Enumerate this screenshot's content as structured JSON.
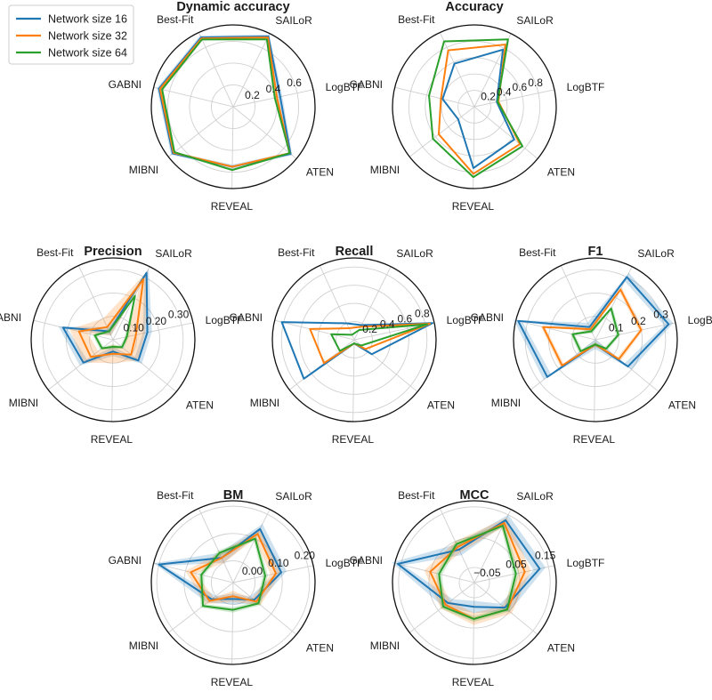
{
  "legend": {
    "items": [
      {
        "label": "Network size 16",
        "color": "#1f77b4"
      },
      {
        "label": "Network size 32",
        "color": "#ff7f0e"
      },
      {
        "label": "Network size 64",
        "color": "#2ca02c"
      }
    ]
  },
  "chart_data": [
    {
      "type": "radar",
      "title": "Dynamic accuracy",
      "categories": [
        "LogBTF",
        "SAILoR",
        "Best-Fit",
        "GABNI",
        "MIBNI",
        "REVEAL",
        "ATEN"
      ],
      "rlim": [
        0.0,
        0.75
      ],
      "ticks": [
        0.2,
        0.4,
        0.6
      ],
      "tick_labels": [
        "0.2",
        "0.4",
        "0.6"
      ],
      "series": [
        {
          "name": "Network size 16",
          "values": [
            0.44,
            0.72,
            0.7,
            0.7,
            0.7,
            0.55,
            0.68
          ],
          "band": 0.02
        },
        {
          "name": "Network size 32",
          "values": [
            0.41,
            0.71,
            0.69,
            0.69,
            0.69,
            0.55,
            0.67
          ],
          "band": 0.01
        },
        {
          "name": "Network size 64",
          "values": [
            0.39,
            0.69,
            0.68,
            0.67,
            0.68,
            0.58,
            0.67
          ],
          "band": 0.01
        }
      ]
    },
    {
      "type": "radar",
      "title": "Accuracy",
      "categories": [
        "LogBTF",
        "SAILoR",
        "Best-Fit",
        "GABNI",
        "MIBNI",
        "REVEAL",
        "ATEN"
      ],
      "rlim": [
        0.0,
        1.0
      ],
      "ticks": [
        0.2,
        0.4,
        0.6,
        0.8
      ],
      "tick_labels": [
        "0.2",
        "0.4",
        "0.6",
        "0.8"
      ],
      "series": [
        {
          "name": "Network size 16",
          "values": [
            0.28,
            0.78,
            0.58,
            0.4,
            0.25,
            0.75,
            0.63
          ],
          "band": 0.01
        },
        {
          "name": "Network size 32",
          "values": [
            0.3,
            0.85,
            0.76,
            0.42,
            0.55,
            0.82,
            0.72
          ],
          "band": 0.01
        },
        {
          "name": "Network size 64",
          "values": [
            0.29,
            0.92,
            0.88,
            0.57,
            0.64,
            0.86,
            0.76
          ],
          "band": 0.01
        }
      ]
    },
    {
      "type": "radar",
      "title": "Precision",
      "categories": [
        "LogBTF",
        "SAILoR",
        "Best-Fit",
        "GABNI",
        "MIBNI",
        "REVEAL",
        "ATEN"
      ],
      "rlim": [
        0.0,
        0.35
      ],
      "ticks": [
        0.1,
        0.2,
        0.3
      ],
      "tick_labels": [
        "0.10",
        "0.20",
        "0.30"
      ],
      "series": [
        {
          "name": "Network size 16",
          "values": [
            0.15,
            0.32,
            0.04,
            0.22,
            0.16,
            0.05,
            0.14
          ],
          "band": 0.02
        },
        {
          "name": "Network size 32",
          "values": [
            0.1,
            0.29,
            0.06,
            0.15,
            0.12,
            0.06,
            0.1
          ],
          "band": 0.04
        },
        {
          "name": "Network size 64",
          "values": [
            0.06,
            0.21,
            0.04,
            0.08,
            0.06,
            0.03,
            0.05
          ],
          "band": 0.01
        }
      ]
    },
    {
      "type": "radar",
      "title": "Recall",
      "categories": [
        "LogBTF",
        "SAILoR",
        "Best-Fit",
        "GABNI",
        "MIBNI",
        "REVEAL",
        "ATEN"
      ],
      "rlim": [
        0.0,
        0.9
      ],
      "ticks": [
        0.2,
        0.4,
        0.6,
        0.8
      ],
      "tick_labels": [
        "0.2",
        "0.4",
        "0.6",
        "0.8"
      ],
      "series": [
        {
          "name": "Network size 16",
          "values": [
            0.88,
            0.18,
            0.2,
            0.82,
            0.7,
            0.04,
            0.25
          ],
          "band": 0.01
        },
        {
          "name": "Network size 32",
          "values": [
            0.85,
            0.16,
            0.14,
            0.5,
            0.42,
            0.04,
            0.16
          ],
          "band": 0.01
        },
        {
          "name": "Network size 64",
          "values": [
            0.82,
            0.12,
            0.06,
            0.26,
            0.2,
            0.04,
            0.1
          ],
          "band": 0.01
        }
      ]
    },
    {
      "type": "radar",
      "title": "F1",
      "categories": [
        "LogBTF",
        "SAILoR",
        "Best-Fit",
        "GABNI",
        "MIBNI",
        "REVEAL",
        "ATEN"
      ],
      "rlim": [
        0.0,
        0.35
      ],
      "ticks": [
        0.1,
        0.2,
        0.3
      ],
      "tick_labels": [
        "0.1",
        "0.2",
        "0.3"
      ],
      "series": [
        {
          "name": "Network size 16",
          "values": [
            0.32,
            0.3,
            0.06,
            0.34,
            0.26,
            0.02,
            0.18
          ],
          "band": 0.02
        },
        {
          "name": "Network size 32",
          "values": [
            0.2,
            0.24,
            0.05,
            0.23,
            0.18,
            0.02,
            0.13
          ],
          "band": 0.01
        },
        {
          "name": "Network size 64",
          "values": [
            0.1,
            0.15,
            0.04,
            0.1,
            0.08,
            0.02,
            0.06
          ],
          "band": 0.01
        }
      ]
    },
    {
      "type": "radar",
      "title": "BM",
      "categories": [
        "LogBTF",
        "SAILoR",
        "Best-Fit",
        "GABNI",
        "MIBNI",
        "REVEAL",
        "ATEN"
      ],
      "rlim": [
        -0.08,
        0.22
      ],
      "ticks": [
        0.0,
        0.1,
        0.2
      ],
      "tick_labels": [
        "0.00",
        "0.10",
        "0.20"
      ],
      "series": [
        {
          "name": "Network size 16",
          "values": [
            0.1,
            0.14,
            0.02,
            0.2,
            0.02,
            -0.02,
            0.02
          ],
          "band": 0.02
        },
        {
          "name": "Network size 32",
          "values": [
            0.08,
            0.12,
            0.02,
            0.08,
            0.03,
            -0.03,
            0.03
          ],
          "band": 0.02
        },
        {
          "name": "Network size 64",
          "values": [
            0.04,
            0.1,
            0.04,
            0.04,
            0.06,
            0.02,
            0.04
          ],
          "band": 0.01
        }
      ]
    },
    {
      "type": "radar",
      "title": "MCC",
      "categories": [
        "LogBTF",
        "SAILoR",
        "Best-Fit",
        "GABNI",
        "MIBNI",
        "REVEAL",
        "ATEN"
      ],
      "rlim": [
        -0.1,
        0.17
      ],
      "ticks": [
        -0.05,
        0.05,
        0.15
      ],
      "tick_labels": [
        "−0.05",
        "0.05",
        "0.15"
      ],
      "series": [
        {
          "name": "Network size 16",
          "values": [
            0.12,
            0.13,
            0.02,
            0.16,
            0.01,
            -0.02,
            0.03
          ],
          "band": 0.02
        },
        {
          "name": "Network size 32",
          "values": [
            0.07,
            0.12,
            0.03,
            0.05,
            0.02,
            0.02,
            0.04
          ],
          "band": 0.02
        },
        {
          "name": "Network size 64",
          "values": [
            0.04,
            0.11,
            0.04,
            0.02,
            0.03,
            0.02,
            0.04
          ],
          "band": 0.01
        }
      ]
    }
  ]
}
